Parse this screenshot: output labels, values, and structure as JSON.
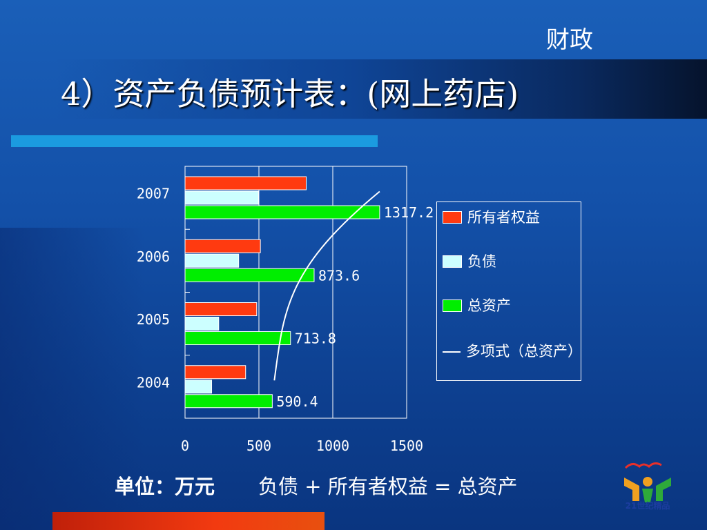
{
  "slide": {
    "department": "财政",
    "title": "4）资产负债预计表：(网上药店)",
    "unit_label": "单位：万元",
    "equation": "负债 + 所有者权益 = 总资产",
    "logo_text": "21世纪精品"
  },
  "colors": {
    "equity": "#ff3a10",
    "liabilities": "#ccffff",
    "total_assets": "#00ee00",
    "trendline": "#ffffff"
  },
  "chart_data": {
    "type": "bar",
    "orientation": "horizontal",
    "categories": [
      "2004",
      "2005",
      "2006",
      "2007"
    ],
    "series": [
      {
        "name": "所有者权益",
        "values": [
          410,
          485,
          510,
          820
        ]
      },
      {
        "name": "负债",
        "values": [
          180,
          228,
          363,
          497
        ]
      },
      {
        "name": "总资产",
        "values": [
          590.4,
          713.8,
          873.6,
          1317.2
        ]
      }
    ],
    "data_labels": [
      "590.4",
      "713.8",
      "873.6",
      "1317.2"
    ],
    "trendline": {
      "name": "多项式（总资产）",
      "type": "polynomial"
    },
    "xlim": [
      0,
      1500
    ],
    "xticks": [
      "0",
      "500",
      "1000",
      "1500"
    ],
    "legend_position": "right",
    "grid": true
  },
  "legend": {
    "equity": "所有者权益",
    "liabilities": "负债",
    "total_assets": "总资产",
    "trendline": "多项式（总资产）"
  }
}
